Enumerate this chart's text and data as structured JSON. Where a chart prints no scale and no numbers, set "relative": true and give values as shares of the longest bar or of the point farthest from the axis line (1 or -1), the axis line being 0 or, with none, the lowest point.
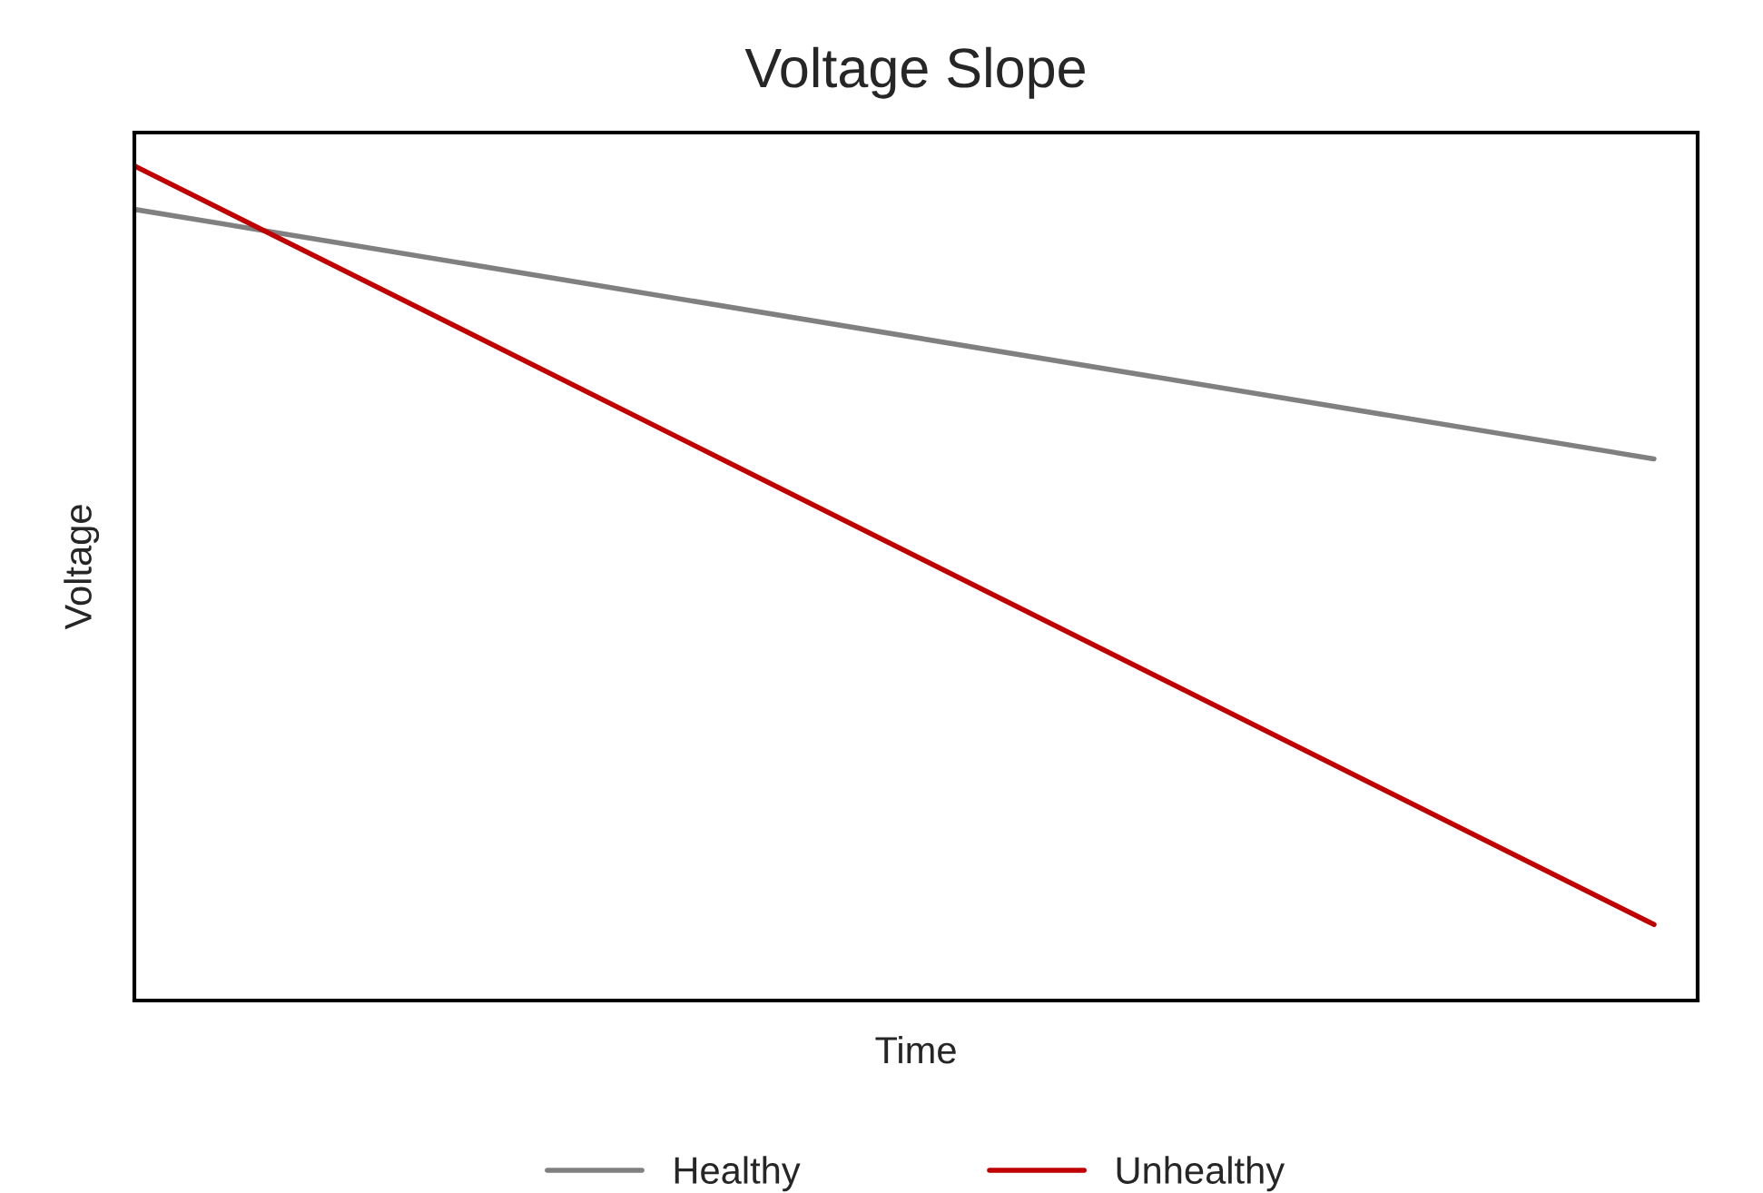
{
  "chart_data": {
    "type": "line",
    "title": "Voltage Slope",
    "xlabel": "Time",
    "ylabel": "Voltage",
    "relative": true,
    "categories": [
      null,
      null
    ],
    "series": [
      {
        "name": "Healthy",
        "color": "#808080",
        "values": [
          0.948,
          0.649
        ]
      },
      {
        "name": "Unhealthy",
        "color": "#c00000",
        "values": [
          1,
          0.091
        ]
      }
    ],
    "legend": "bottom",
    "marker": "none",
    "line_style": "solid"
  }
}
